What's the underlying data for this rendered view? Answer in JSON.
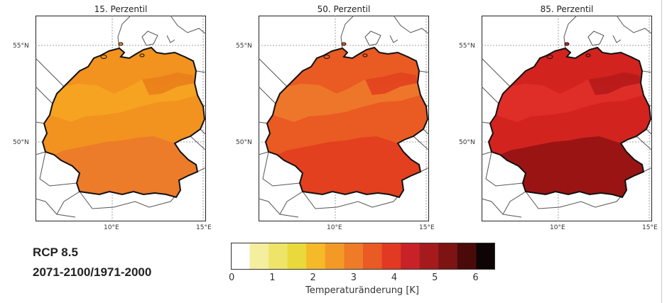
{
  "panels": [
    {
      "title": "15. Perzentil",
      "base_color": "#f2921f",
      "hot_color": "#ea7f1a",
      "south_color": "#ec7b2a",
      "cool_color": "#f6a622"
    },
    {
      "title": "50. Perzentil",
      "base_color": "#ea5a23",
      "hot_color": "#e2421f",
      "south_color": "#e3401f",
      "cool_color": "#ef7b2b"
    },
    {
      "title": "85. Perzentil",
      "base_color": "#d3231f",
      "hot_color": "#b51b1a",
      "south_color": "#9a1414",
      "cool_color": "#e1302a"
    }
  ],
  "lat_labels": [
    "55°N",
    "50°N"
  ],
  "lon_labels": [
    "10°E",
    "15°E"
  ],
  "scenario": "RCP 8.5",
  "period": "2071-2100/1971-2000",
  "colorbar": {
    "title": "Temperaturänderung [K]",
    "ticks": [
      "0",
      "1",
      "2",
      "3",
      "4",
      "5",
      "6"
    ],
    "colors": [
      "#ffffff",
      "#f4ef9e",
      "#eee46a",
      "#e9d93a",
      "#f6b92a",
      "#f39a26",
      "#ee7b28",
      "#ea5a24",
      "#e23a22",
      "#c82228",
      "#a51b1d",
      "#7d1313",
      "#4a0a0a",
      "#0d0505"
    ]
  }
}
